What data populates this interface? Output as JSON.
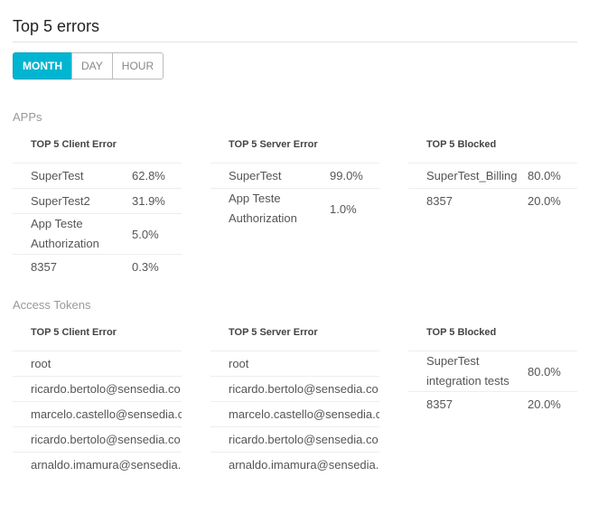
{
  "title": "Top 5 errors",
  "filters": [
    "MONTH",
    "DAY",
    "HOUR"
  ],
  "active_filter": "MONTH",
  "accent_color": "#00b5d1",
  "apps": {
    "label": "APPs",
    "client": {
      "header": "TOP 5 Client Error",
      "rows": [
        {
          "name": "SuperTest",
          "pct": "62.8%"
        },
        {
          "name": "SuperTest2",
          "pct": "31.9%"
        },
        {
          "name": "App Teste Authorization",
          "pct": "5.0%"
        },
        {
          "name": "8357",
          "pct": "0.3%"
        }
      ]
    },
    "server": {
      "header": "TOP 5 Server Error",
      "rows": [
        {
          "name": "SuperTest",
          "pct": "99.0%"
        },
        {
          "name": "App Teste Authorization",
          "pct": "1.0%"
        }
      ]
    },
    "blocked": {
      "header": "TOP 5 Blocked",
      "rows": [
        {
          "name": "SuperTest_Billing",
          "pct": "80.0%"
        },
        {
          "name": "8357",
          "pct": "20.0%"
        }
      ]
    }
  },
  "tokens": {
    "label": "Access Tokens",
    "client": {
      "header": "TOP 5 Client Error",
      "rows": [
        {
          "name": "root"
        },
        {
          "name": "ricardo.bertolo@sensedia.co"
        },
        {
          "name": "marcelo.castello@sensedia.c"
        },
        {
          "name": "ricardo.bertolo@sensedia.co"
        },
        {
          "name": "arnaldo.imamura@sensedia."
        }
      ]
    },
    "server": {
      "header": "TOP 5 Server Error",
      "rows": [
        {
          "name": "root"
        },
        {
          "name": "ricardo.bertolo@sensedia.co"
        },
        {
          "name": "marcelo.castello@sensedia.c"
        },
        {
          "name": "ricardo.bertolo@sensedia.co"
        },
        {
          "name": "arnaldo.imamura@sensedia."
        }
      ]
    },
    "blocked": {
      "header": "TOP 5 Blocked",
      "rows": [
        {
          "name": "SuperTest integration tests",
          "pct": "80.0%"
        },
        {
          "name": "8357",
          "pct": "20.0%"
        }
      ]
    }
  }
}
